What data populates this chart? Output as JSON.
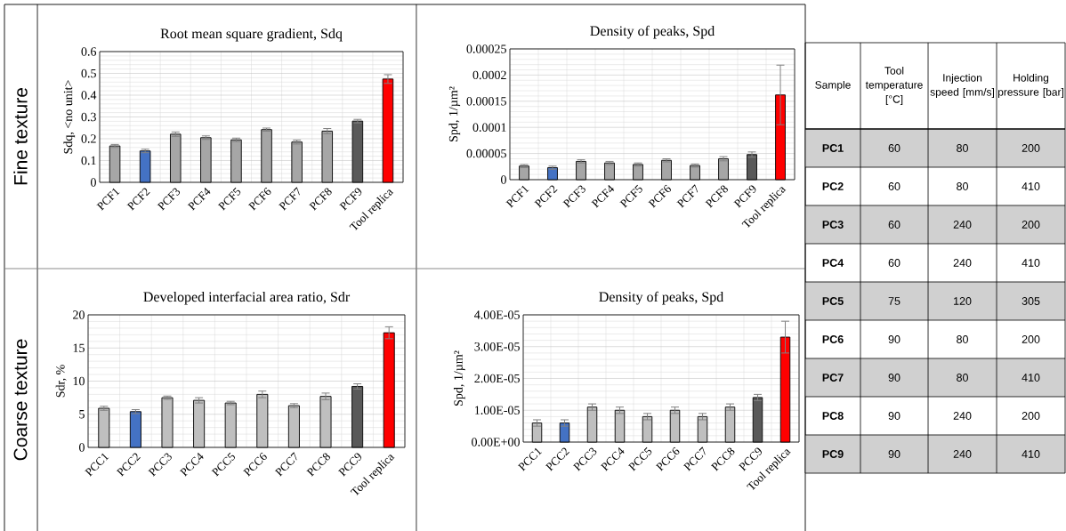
{
  "chart_data": [
    {
      "type": "bar",
      "title": "Root mean square gradient, Sdq",
      "ylabel": "Sdq, <no unit>",
      "categories": [
        "PCF1",
        "PCF2",
        "PCF3",
        "PCF4",
        "PCF5",
        "PCF6",
        "PCF7",
        "PCF8",
        "PCF9",
        "Tool replica"
      ],
      "values": [
        0.167,
        0.144,
        0.221,
        0.205,
        0.195,
        0.242,
        0.185,
        0.235,
        0.281,
        0.474
      ],
      "errors": [
        0.007,
        0.008,
        0.01,
        0.008,
        0.008,
        0.007,
        0.009,
        0.012,
        0.008,
        0.02
      ],
      "colors": [
        "#a6a6a6",
        "#4472c4",
        "#a6a6a6",
        "#a6a6a6",
        "#a6a6a6",
        "#a6a6a6",
        "#a6a6a6",
        "#a6a6a6",
        "#595959",
        "#ff0000"
      ],
      "ylim": [
        0,
        0.6
      ],
      "yticks": [
        0,
        0.1,
        0.2,
        0.3,
        0.4,
        0.5,
        0.6
      ],
      "grid": true,
      "annotations": [
        "Fine texture"
      ]
    },
    {
      "type": "bar",
      "title": "Density of peaks, Spd",
      "ylabel": "Spd, 1/µm²",
      "categories": [
        "PCF1",
        "PCF2",
        "PCF3",
        "PCF4",
        "PCF5",
        "PCF6",
        "PCF7",
        "PCF8",
        "PCF9",
        "Tool replica"
      ],
      "values": [
        2.6e-05,
        2.3e-05,
        3.5e-05,
        3.2e-05,
        2.9e-05,
        3.7e-05,
        2.7e-05,
        4e-05,
        4.8e-05,
        0.000162
      ],
      "errors": [
        3e-06,
        3e-06,
        3e-06,
        3e-06,
        3e-06,
        3e-06,
        3e-06,
        4e-06,
        5e-06,
        5.7e-05
      ],
      "colors": [
        "#a6a6a6",
        "#4472c4",
        "#a6a6a6",
        "#a6a6a6",
        "#a6a6a6",
        "#a6a6a6",
        "#a6a6a6",
        "#a6a6a6",
        "#595959",
        "#ff0000"
      ],
      "ylim": [
        0,
        0.00025
      ],
      "yticks": [
        0,
        {
          "value": 5e-05,
          "label": "0.00005"
        },
        {
          "value": 0.0001,
          "label": "0.0001"
        },
        {
          "value": 0.00015,
          "label": "0.00015"
        },
        {
          "value": 0.0002,
          "label": "0.0002"
        },
        {
          "value": 0.00025,
          "label": "0.00025"
        }
      ],
      "grid": true
    },
    {
      "type": "bar",
      "title": "Developed interfacial area ratio, Sdr",
      "ylabel": "Sdr, %",
      "categories": [
        "PCC1",
        "PCC2",
        "PCC3",
        "PCC4",
        "PCC5",
        "PCC6",
        "PCC7",
        "PCC8",
        "PCC9",
        "Tool replica"
      ],
      "values": [
        5.9,
        5.4,
        7.5,
        7.1,
        6.7,
        8.0,
        6.3,
        7.7,
        9.2,
        17.3
      ],
      "errors": [
        0.3,
        0.3,
        0.25,
        0.4,
        0.25,
        0.5,
        0.3,
        0.5,
        0.4,
        0.9
      ],
      "colors": [
        "#bfbfbf",
        "#4472c4",
        "#bfbfbf",
        "#bfbfbf",
        "#bfbfbf",
        "#bfbfbf",
        "#bfbfbf",
        "#bfbfbf",
        "#595959",
        "#ff0000"
      ],
      "ylim": [
        0,
        20
      ],
      "yticks": [
        0,
        5,
        10,
        15,
        20
      ],
      "grid": true,
      "annotations": [
        "Coarse texture"
      ]
    },
    {
      "type": "bar",
      "title": "Density of peaks, Spd",
      "ylabel": "Spd, 1/µm²",
      "categories": [
        "PCC1",
        "PCC2",
        "PCC3",
        "PCC4",
        "PCC5",
        "PCC6",
        "PCC7",
        "PCC8",
        "PCC9",
        "Tool replica"
      ],
      "values": [
        6e-06,
        6e-06,
        1.1e-05,
        1e-05,
        8e-06,
        1e-05,
        8e-06,
        1.1e-05,
        1.4e-05,
        3.3e-05
      ],
      "errors": [
        1e-06,
        1e-06,
        1e-06,
        1e-06,
        1e-06,
        1e-06,
        1e-06,
        1e-06,
        1e-06,
        5e-06
      ],
      "colors": [
        "#bfbfbf",
        "#4472c4",
        "#bfbfbf",
        "#bfbfbf",
        "#bfbfbf",
        "#bfbfbf",
        "#bfbfbf",
        "#bfbfbf",
        "#595959",
        "#ff0000"
      ],
      "ylim": [
        0,
        4e-05
      ],
      "yticks": [
        {
          "value": 0,
          "label": "0.00E+00"
        },
        {
          "value": 1e-05,
          "label": "1.00E-05"
        },
        {
          "value": 2e-05,
          "label": "2.00E-05"
        },
        {
          "value": 3e-05,
          "label": "3.00E-05"
        },
        {
          "value": 4e-05,
          "label": "4.00E-05"
        }
      ],
      "grid": true
    },
    {
      "type": "other",
      "annotations": [
        "Sample",
        "Tool temperature [°C]",
        "Injection speed [mm/s]",
        "Holding pressure [bar]",
        "PC1",
        "60",
        "80",
        "200",
        "PC2",
        "60",
        "80",
        "410",
        "PC3",
        "60",
        "240",
        "200",
        "PC4",
        "60",
        "240",
        "410",
        "PC5",
        "75",
        "120",
        "305",
        "PC6",
        "90",
        "80",
        "200",
        "PC7",
        "90",
        "80",
        "410",
        "PC8",
        "90",
        "240",
        "200",
        "PC9",
        "90",
        "240",
        "410"
      ]
    }
  ]
}
